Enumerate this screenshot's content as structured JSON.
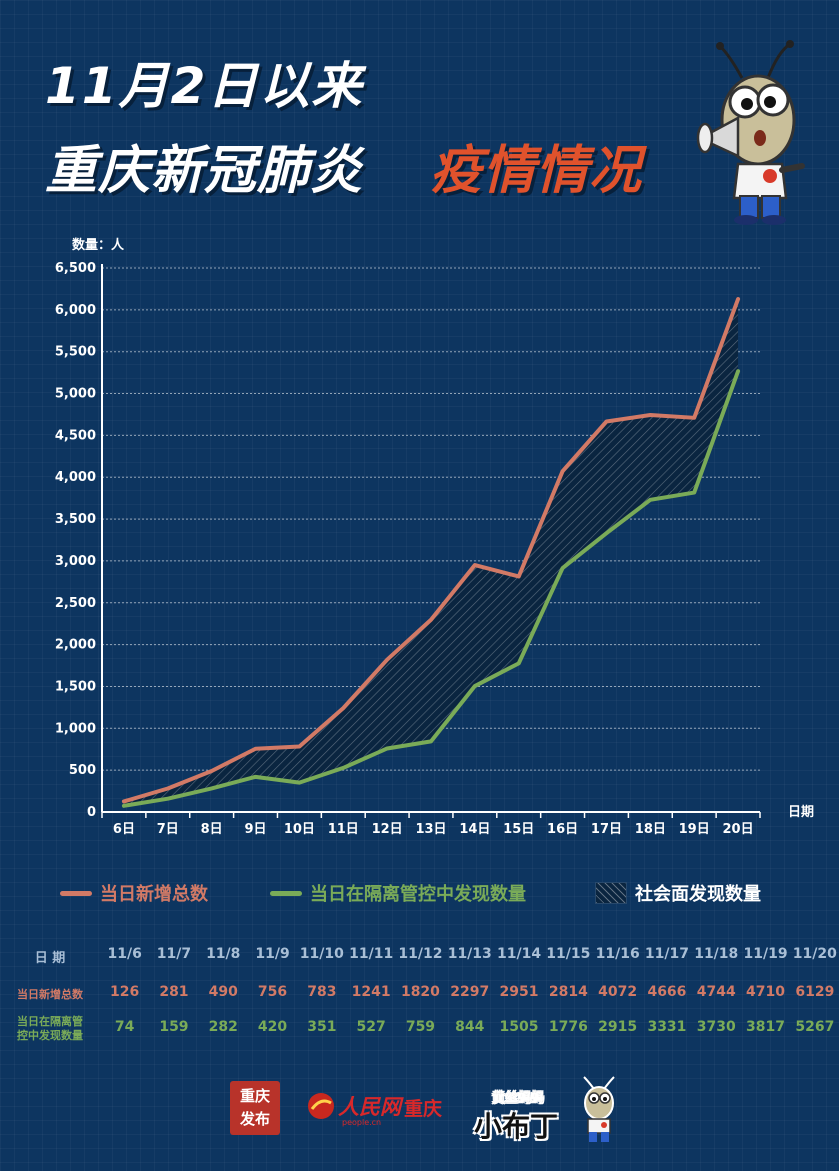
{
  "title": {
    "line1": "11月2日以来",
    "line2_white": "重庆新冠肺炎",
    "line2_orange": "疫情情况"
  },
  "colors": {
    "background": "#0d3560",
    "total": "#d27a66",
    "isolated": "#7aab58",
    "title_accent": "#e0522c",
    "table_header": "#a9bfd6"
  },
  "chart_data": {
    "type": "line",
    "ylabel": "数量：人",
    "xlabel": "日期",
    "ylim": [
      0,
      6500
    ],
    "yticks": [
      "0",
      "500",
      "1,000",
      "1,500",
      "2,000",
      "2,500",
      "3,000",
      "3,500",
      "4,000",
      "4,500",
      "5,000",
      "5,500",
      "6,000",
      "6,500"
    ],
    "categories": [
      "6日",
      "7日",
      "8日",
      "9日",
      "10日",
      "11日",
      "12日",
      "13日",
      "14日",
      "15日",
      "16日",
      "17日",
      "18日",
      "19日",
      "20日"
    ],
    "series": [
      {
        "name": "当日新增总数",
        "values": [
          126,
          281,
          490,
          756,
          783,
          1241,
          1820,
          2297,
          2951,
          2814,
          4072,
          4666,
          4744,
          4710,
          6129
        ]
      },
      {
        "name": "当日在隔离管控中发现数量",
        "values": [
          74,
          159,
          282,
          420,
          351,
          527,
          759,
          844,
          1505,
          1776,
          2915,
          3331,
          3730,
          3817,
          5267
        ]
      }
    ],
    "area_legend": "社会面发现数量",
    "grid": "horizontal dotted",
    "legend_position": "bottom"
  },
  "table": {
    "header_label": "日 期",
    "dates": [
      "11/6",
      "11/7",
      "11/8",
      "11/9",
      "11/10",
      "11/11",
      "11/12",
      "11/13",
      "11/14",
      "11/15",
      "11/16",
      "11/17",
      "11/18",
      "11/19",
      "11/20"
    ],
    "rows": [
      {
        "label": "当日新增总数",
        "values": [
          "126",
          "281",
          "490",
          "756",
          "783",
          "1241",
          "1820",
          "2297",
          "2951",
          "2814",
          "4072",
          "4666",
          "4744",
          "4710",
          "6129"
        ]
      },
      {
        "label_line1": "当日在隔离管",
        "label_line2": "控中发现数量",
        "values": [
          "74",
          "159",
          "282",
          "420",
          "351",
          "527",
          "759",
          "844",
          "1505",
          "1776",
          "2915",
          "3331",
          "3730",
          "3817",
          "5267"
        ]
      }
    ]
  },
  "footer": {
    "logo1_text": "重庆发布",
    "logo2_text": "人民网",
    "logo2_sub": "people.cn",
    "logo2_city": "重庆",
    "logo3_small": "黄丝蚂蚂",
    "logo3_big": "小布丁"
  },
  "icons": [
    "mascot-ant-megaphone-icon",
    "mascot-ant-small-icon",
    "people-net-logo-icon",
    "chongqing-release-seal-icon"
  ]
}
